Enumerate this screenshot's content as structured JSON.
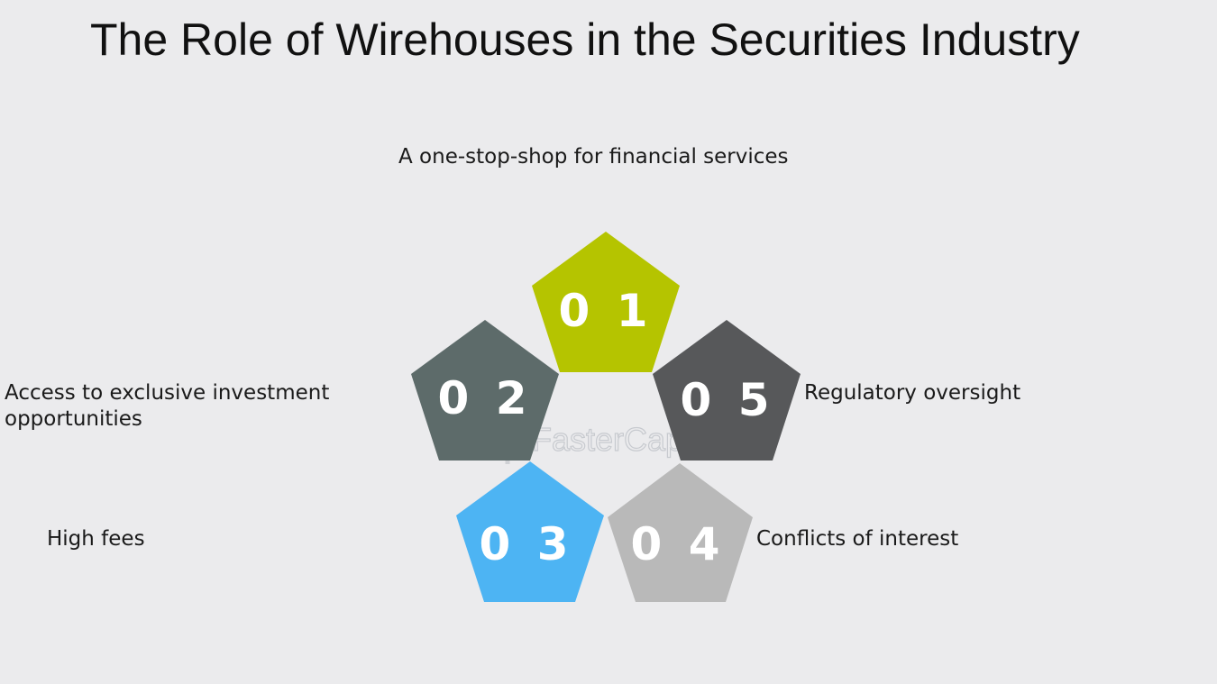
{
  "title": "The Role of Wirehouses in the Securities Industry",
  "items": [
    {
      "number": "0 1",
      "label": "A one-stop-shop for financial services",
      "color": "#b5c400"
    },
    {
      "number": "0 2",
      "label": "Access to exclusive investment opportunities",
      "color": "#5d6b6a"
    },
    {
      "number": "0 3",
      "label": "High fees",
      "color": "#4db4f3"
    },
    {
      "number": "0 4",
      "label": "Conflicts of interest",
      "color": "#b9b9b9"
    },
    {
      "number": "0 5",
      "label": "Regulatory oversight",
      "color": "#57585a"
    }
  ],
  "watermark": {
    "text": "FasterCapital",
    "icon": "gear-icon"
  }
}
